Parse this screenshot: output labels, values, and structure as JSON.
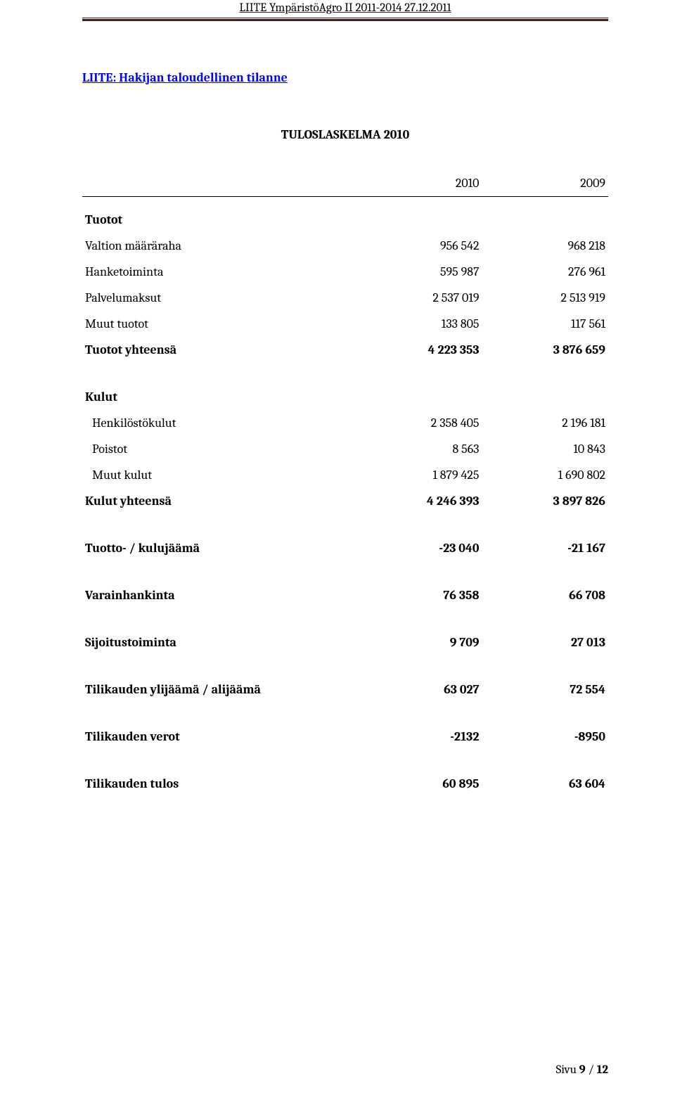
{
  "header": {
    "text": "LIITE YmpäristöAgro II  2011-2014   27.12.2011",
    "rule_color_thin": "#4a1818",
    "rule_color_thick": "#4a1818"
  },
  "section_link": "LIITE:   Hakijan taloudellinen tilanne",
  "title": "TULOSLASKELMA 2010",
  "years": {
    "col1": "2010",
    "col2": "2009"
  },
  "groups": {
    "tuotot_header": "Tuotot",
    "kulut_header": "Kulut"
  },
  "rows": {
    "valtion": {
      "label": "Valtion määräraha",
      "c1": "956 542",
      "c2": "968 218"
    },
    "hanketoiminta": {
      "label": "Hanketoiminta",
      "c1": "595 987",
      "c2": "276 961"
    },
    "palvelumaksut": {
      "label": "Palvelumaksut",
      "c1": "2 537 019",
      "c2": "2 513 919"
    },
    "muut_tuotot": {
      "label": "Muut tuotot",
      "c1": "133 805",
      "c2": "117 561"
    },
    "tuotot_yht": {
      "label": "Tuotot yhteensä",
      "c1": "4 223 353",
      "c2": "3 876 659"
    },
    "henkilosto": {
      "label": "Henkilöstökulut",
      "c1": "2 358 405",
      "c2": "2 196 181"
    },
    "poistot": {
      "label": "Poistot",
      "c1": "8 563",
      "c2": "10 843"
    },
    "muut_kulut": {
      "label": "Muut kulut",
      "c1": "1 879 425",
      "c2": "1 690 802"
    },
    "kulut_yht": {
      "label": "Kulut yhteensä",
      "c1": "4 246 393",
      "c2": "3 897 826"
    },
    "tuotto_kulu": {
      "label": "Tuotto- / kulujäämä",
      "c1": "-23 040",
      "c2": "-21 167"
    },
    "varainhankinta": {
      "label": "Varainhankinta",
      "c1": "76 358",
      "c2": "66 708"
    },
    "sijoitus": {
      "label": "Sijoitustoiminta",
      "c1": "9 709",
      "c2": "27 013"
    },
    "ylij_alij": {
      "label": "Tilikauden ylijäämä / alijäämä",
      "c1": "63 027",
      "c2": "72 554"
    },
    "verot": {
      "label": "Tilikauden verot",
      "c1": "-2132",
      "c2": "-8950"
    },
    "tulos": {
      "label": "Tilikauden tulos",
      "c1": "60 895",
      "c2": "63 604"
    }
  },
  "footer": {
    "label": "Sivu",
    "page": "9",
    "sep": "/",
    "total": "12"
  },
  "colors": {
    "text": "#000000",
    "link": "#0000ff",
    "background": "#ffffff"
  },
  "fonts": {
    "body_size_pt": 13,
    "title_size_pt": 13
  }
}
